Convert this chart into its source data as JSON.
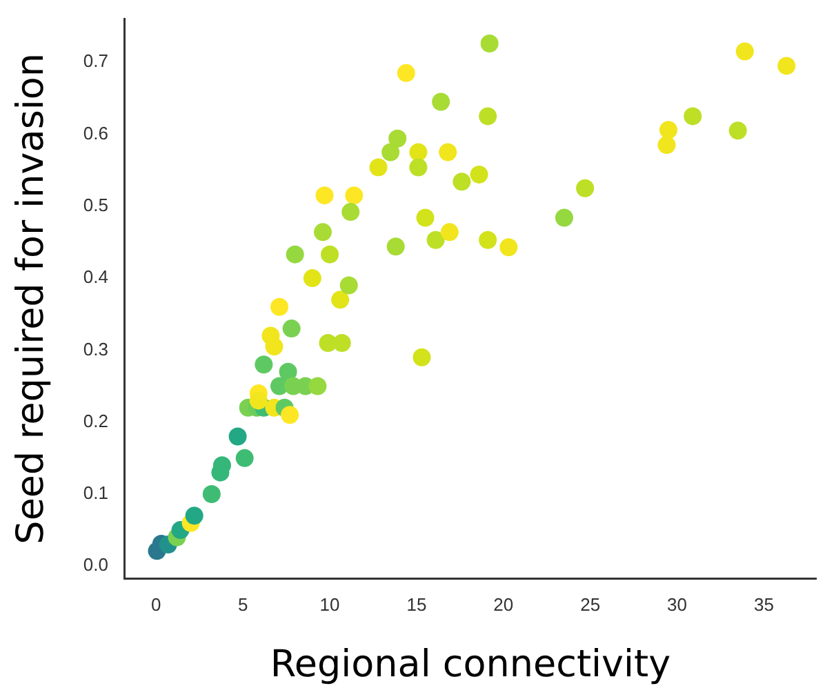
{
  "chart_data": {
    "type": "scatter",
    "xlabel": "Regional connectivity",
    "ylabel": "Seed required for invasion",
    "marker": "circle",
    "grid": false,
    "legend": false,
    "xlim": [
      -1.8,
      38
    ],
    "ylim": [
      -0.017,
      0.76
    ],
    "xticks": [
      0,
      5,
      10,
      15,
      20,
      25,
      30,
      35
    ],
    "yticks": [
      {
        "value": 0,
        "label": "0.0"
      },
      0.1,
      0.2,
      0.3,
      0.4,
      0.5,
      0.6,
      0.7
    ],
    "series": [
      {
        "x": [
          0.05,
          0.3,
          0.7,
          1.2,
          1.4,
          2.0,
          2.2,
          3.2,
          3.7,
          3.8,
          5.1,
          4.7,
          5.3,
          5.8,
          6.2,
          5.9,
          5.9,
          6.2,
          7.1,
          7.6,
          6.8,
          7.4,
          7.7,
          7.9,
          8.6,
          9.3,
          6.6,
          6.8,
          7.1,
          7.8,
          9.9,
          10.7,
          15.3,
          9.0,
          10.6,
          11.1,
          14.4,
          16.4,
          13.9,
          13.5,
          15.1,
          16.8,
          12.8,
          15.1,
          17.6,
          9.7,
          11.4,
          11.2,
          9.6,
          15.5,
          16.1,
          16.9,
          13.8,
          8.0,
          10.0,
          19.2,
          19.1,
          18.6,
          24.7,
          23.5,
          19.1,
          20.3,
          33.9,
          36.3,
          30.9,
          29.5,
          29.4,
          33.5
        ],
        "values": [
          0.021,
          0.031,
          0.03,
          0.04,
          0.05,
          0.06,
          0.07,
          0.1,
          0.13,
          0.14,
          0.15,
          0.18,
          0.22,
          0.22,
          0.22,
          0.24,
          0.23,
          0.28,
          0.25,
          0.27,
          0.22,
          0.22,
          0.21,
          0.25,
          0.25,
          0.25,
          0.32,
          0.305,
          0.36,
          0.33,
          0.31,
          0.31,
          0.29,
          0.4,
          0.37,
          0.39,
          0.685,
          0.645,
          0.594,
          0.575,
          0.575,
          0.575,
          0.554,
          0.554,
          0.534,
          0.515,
          0.515,
          0.492,
          0.464,
          0.484,
          0.453,
          0.464,
          0.444,
          0.433,
          0.433,
          0.726,
          0.625,
          0.544,
          0.525,
          0.484,
          0.453,
          0.443,
          0.715,
          0.695,
          0.625,
          0.606,
          0.585,
          0.605
        ],
        "colors": [
          "#2a788e",
          "#2a788e",
          "#21918c",
          "#7ad151",
          "#22a884",
          "#fde725",
          "#22a884",
          "#3fbc73",
          "#35b779",
          "#35b779",
          "#3fbc73",
          "#22a884",
          "#7ad151",
          "#6ccd5a",
          "#3fbc73",
          "#fde725",
          "#f1e51d",
          "#5ec962",
          "#5ec962",
          "#5ec962",
          "#f1e51d",
          "#5ec962",
          "#fde725",
          "#7ad151",
          "#7ad151",
          "#95d840",
          "#f1e51d",
          "#f1e51d",
          "#fde725",
          "#7ad151",
          "#bddf26",
          "#bddf26",
          "#d2e21b",
          "#e2e418",
          "#e2e418",
          "#a8db34",
          "#fde725",
          "#a8db34",
          "#a8db34",
          "#a8db34",
          "#e2e418",
          "#f1e51d",
          "#e2e418",
          "#bddf26",
          "#bddf26",
          "#fde725",
          "#fde725",
          "#a8db34",
          "#a8db34",
          "#d2e21b",
          "#bddf26",
          "#f1e51d",
          "#a8db34",
          "#95d840",
          "#bddf26",
          "#a8db34",
          "#bddf26",
          "#d2e21b",
          "#bddf26",
          "#95d840",
          "#d2e21b",
          "#f1e51d",
          "#f1e51d",
          "#f1e51d",
          "#bddf26",
          "#f1e51d",
          "#f1e51d",
          "#bddf26"
        ]
      }
    ]
  }
}
